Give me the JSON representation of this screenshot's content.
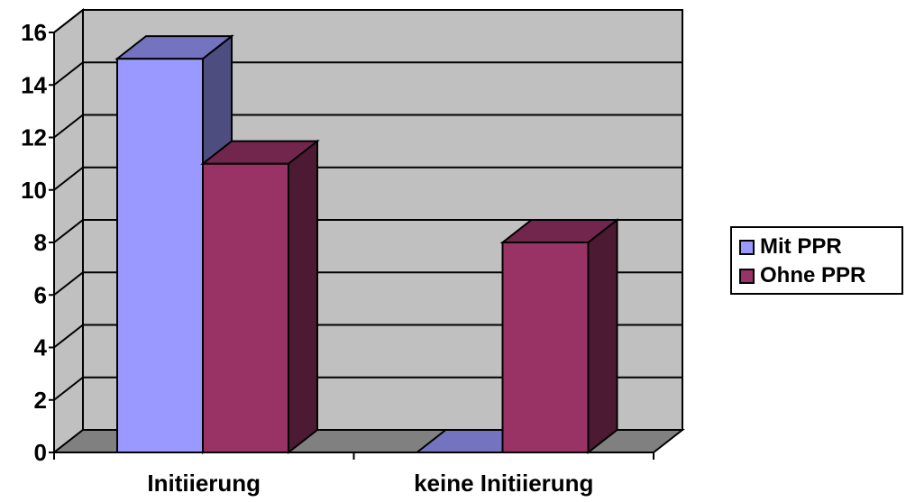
{
  "chart_data": {
    "type": "bar",
    "categories": [
      "Initiierung",
      "keine Initiierung"
    ],
    "series": [
      {
        "name": "Mit PPR",
        "values": [
          15,
          0
        ]
      },
      {
        "name": "Ohne PPR",
        "values": [
          11,
          8
        ]
      }
    ],
    "ylim": [
      0,
      16
    ],
    "yticks": [
      "0",
      "2",
      "4",
      "6",
      "8",
      "10",
      "12",
      "14",
      "16"
    ],
    "grid": true,
    "legend": "right",
    "colors": {
      "mit_front": "#9999ff",
      "mit_side": "#4d4d80",
      "mit_top": "#7373bf",
      "ohne_front": "#993366",
      "ohne_side": "#4d1a33",
      "ohne_top": "#73264d",
      "wall": "#c0c0c0",
      "floor": "#808080"
    }
  }
}
